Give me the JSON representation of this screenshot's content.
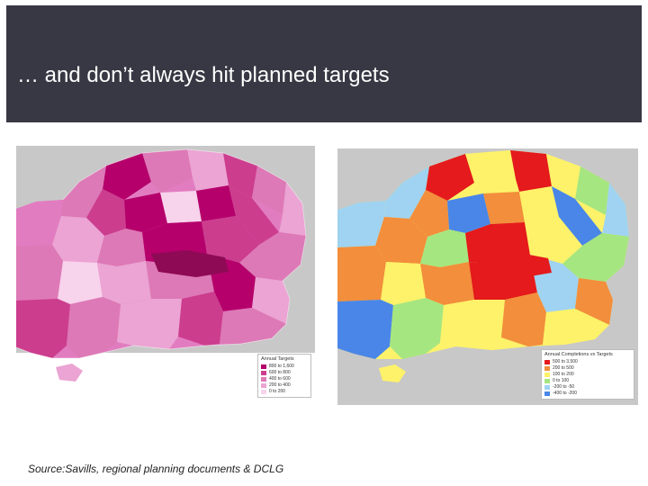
{
  "slide": {
    "title": "… and don’t always hit planned targets",
    "source": "Source:Savills, regional planning documents & DCLG"
  },
  "maps": {
    "left": {
      "legend_title": "Annual Targets",
      "legend_items": [
        {
          "label": "800 to 1,600",
          "color": "#b5006b"
        },
        {
          "label": "600 to 800",
          "color": "#cc3d8e"
        },
        {
          "label": "400 to 600",
          "color": "#dd79b6"
        },
        {
          "label": "200 to 400",
          "color": "#eba4d3"
        },
        {
          "label": "0 to 200",
          "color": "#f8d3ec"
        }
      ]
    },
    "right": {
      "legend_title": "Annual Completions vs Targets",
      "legend_items": [
        {
          "label": "500 to 3,500",
          "color": "#e41a1c"
        },
        {
          "label": "200 to 500",
          "color": "#f28e3c"
        },
        {
          "label": "100 to 200",
          "color": "#fdf26a"
        },
        {
          "label": "0 to 100",
          "color": "#a6e681"
        },
        {
          "label": "-200 to -50",
          "color": "#9fd3f1"
        },
        {
          "label": "-400 to -200",
          "color": "#4a86e8"
        }
      ]
    },
    "sea_color": "#c8c8c8"
  }
}
